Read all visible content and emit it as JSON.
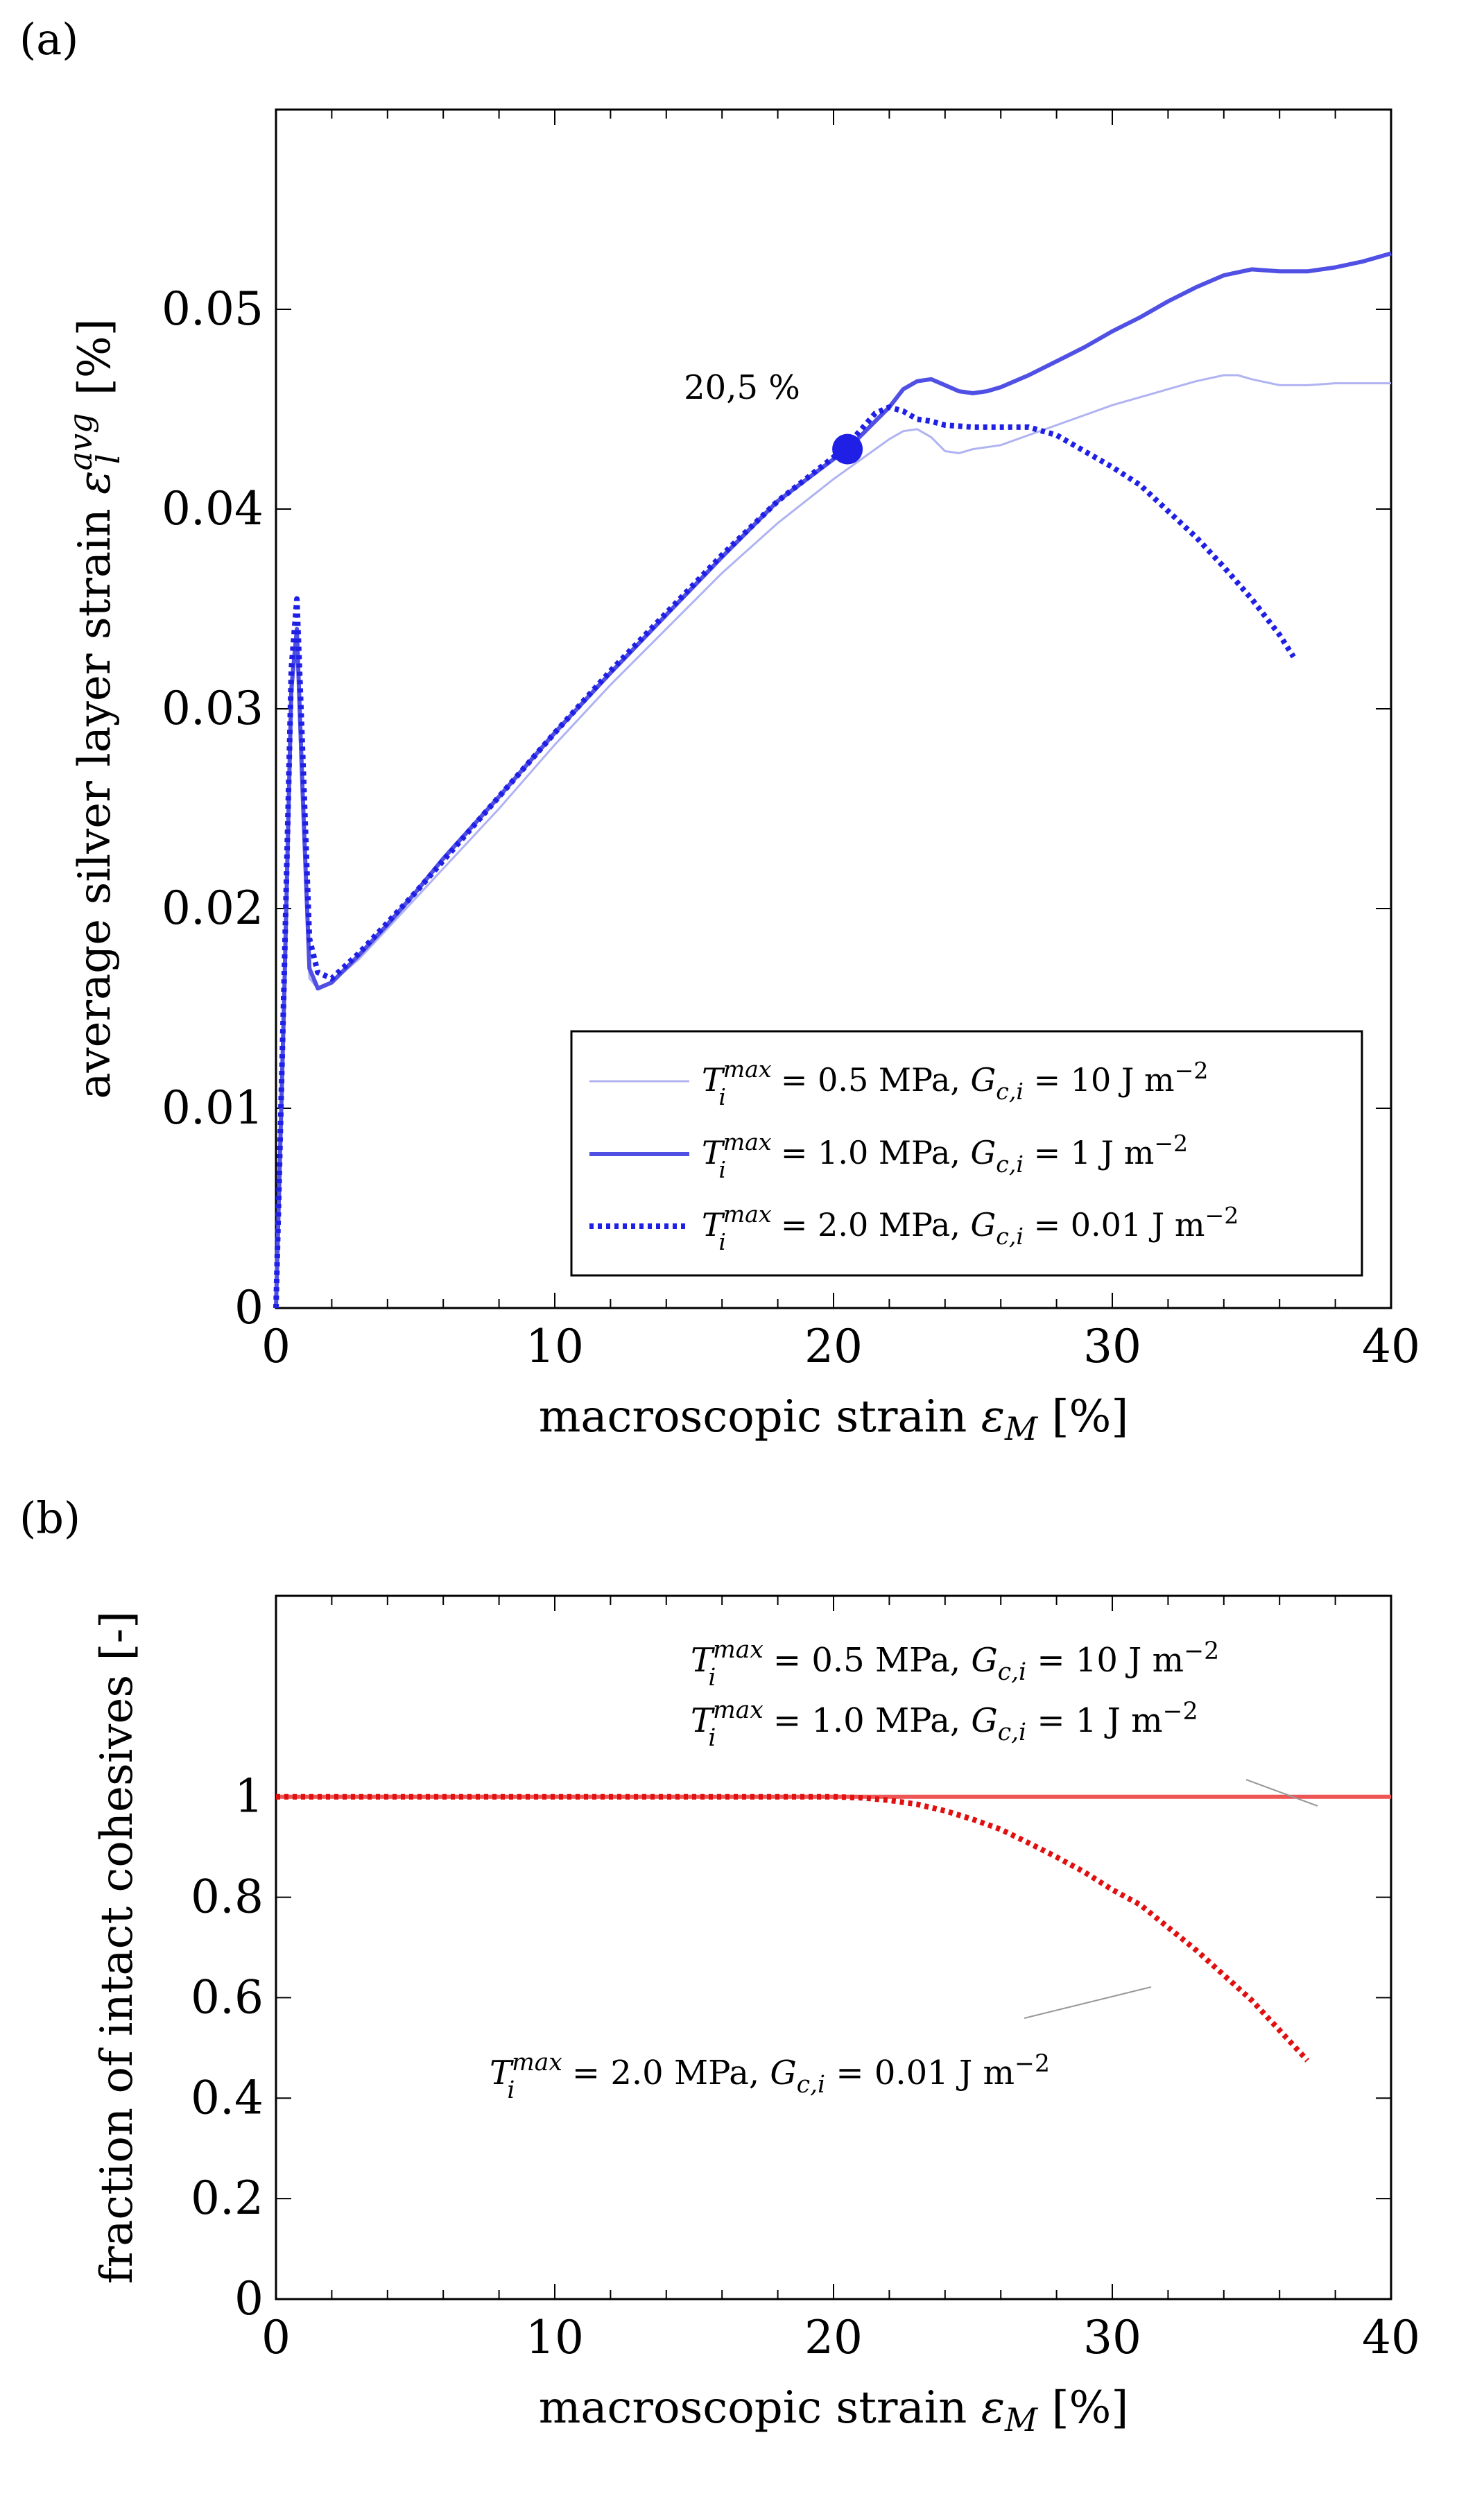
{
  "chart_data": [
    {
      "type": "line",
      "panel_label": "(a)",
      "xlabel": "macroscopic strain",
      "xsymbol": "ε",
      "xsub": "M",
      "xunit": "[%]",
      "ylabel": "average silver layer strain",
      "ysymbol": "ε",
      "ysub": "l",
      "ysup": "avg",
      "yunit": "[%]",
      "xlim": [
        0,
        40
      ],
      "ylim": [
        0,
        0.06
      ],
      "xticks": [
        0,
        10,
        20,
        30,
        40
      ],
      "xtick_labels": [
        "0",
        "10",
        "20",
        "30",
        "40"
      ],
      "yticks": [
        0,
        0.01,
        0.02,
        0.03,
        0.04,
        0.05
      ],
      "ytick_labels": [
        "0",
        "0.01",
        "0.02",
        "0.03",
        "0.04",
        "0.05"
      ],
      "grid": false,
      "legend_position": "bottom-right",
      "annotation": {
        "text": "20,5 %",
        "x": 20.5,
        "y": 0.043
      },
      "series": [
        {
          "name": "T_i^max = 0.5 MPa, G_c,i = 10 J m^-2",
          "legend": {
            "T": "T",
            "sub": "i",
            "sup": "max",
            "val1": " = 0.5 MPa, ",
            "G": "G",
            "gsub": "c,i",
            "val2": " = 10 J m",
            "exp": "−2"
          },
          "color": "#b0b3f2",
          "style": "thin",
          "x": [
            0,
            0.3,
            0.55,
            0.75,
            0.95,
            1.2,
            1.5,
            2,
            3,
            4,
            5,
            6,
            8,
            10,
            12,
            14,
            16,
            18,
            20,
            21,
            22,
            22.5,
            23,
            23.5,
            24,
            24.5,
            25,
            26,
            27,
            28,
            29,
            30,
            31,
            32,
            33,
            34,
            34.5,
            35,
            36,
            37,
            38,
            39,
            40
          ],
          "y": [
            0,
            0.015,
            0.03,
            0.034,
            0.025,
            0.0165,
            0.016,
            0.0163,
            0.0175,
            0.019,
            0.0205,
            0.022,
            0.025,
            0.0282,
            0.0312,
            0.034,
            0.0368,
            0.0393,
            0.0415,
            0.0425,
            0.0435,
            0.0439,
            0.044,
            0.0436,
            0.0429,
            0.0428,
            0.043,
            0.0432,
            0.0437,
            0.0442,
            0.0447,
            0.0452,
            0.0456,
            0.046,
            0.0464,
            0.0467,
            0.0467,
            0.0465,
            0.0462,
            0.0462,
            0.0463,
            0.0463,
            0.0463
          ]
        },
        {
          "name": "T_i^max = 1.0 MPa, G_c,i = 1 J m^-2",
          "legend": {
            "T": "T",
            "sub": "i",
            "sup": "max",
            "val1": " = 1.0 MPa, ",
            "G": "G",
            "gsub": "c,i",
            "val2": " = 1 J m",
            "exp": "−2"
          },
          "color": "#5050e4",
          "style": "solid",
          "x": [
            0,
            0.3,
            0.55,
            0.75,
            0.95,
            1.2,
            1.5,
            2,
            3,
            4,
            5,
            6,
            8,
            10,
            12,
            14,
            16,
            18,
            20,
            20.5,
            21,
            22,
            22.5,
            23,
            23.5,
            24,
            24.5,
            25,
            25.5,
            26,
            27,
            28,
            29,
            30,
            31,
            32,
            33,
            34,
            35,
            36,
            37,
            38,
            39,
            40
          ],
          "y": [
            0,
            0.016,
            0.031,
            0.034,
            0.026,
            0.017,
            0.016,
            0.0163,
            0.0177,
            0.0192,
            0.0208,
            0.0225,
            0.0256,
            0.0288,
            0.0318,
            0.0347,
            0.0376,
            0.0404,
            0.0425,
            0.043,
            0.0437,
            0.0451,
            0.046,
            0.0464,
            0.0465,
            0.0462,
            0.0459,
            0.0458,
            0.0459,
            0.0461,
            0.0467,
            0.0474,
            0.0481,
            0.0489,
            0.0496,
            0.0504,
            0.0511,
            0.0517,
            0.052,
            0.0519,
            0.0519,
            0.0521,
            0.0524,
            0.0528
          ]
        },
        {
          "name": "T_i^max = 2.0 MPa, G_c,i = 0.01 J m^-2",
          "legend": {
            "T": "T",
            "sub": "i",
            "sup": "max",
            "val1": " = 2.0 MPa, ",
            "G": "G",
            "gsub": "c,i",
            "val2": " = 0.01 J m",
            "exp": "−2"
          },
          "color": "#1f1fe6",
          "style": "dotted",
          "x": [
            0,
            0.3,
            0.55,
            0.75,
            0.95,
            1.2,
            1.5,
            2,
            3,
            4,
            5,
            6,
            8,
            10,
            12,
            14,
            16,
            18,
            20,
            20.5,
            21,
            21.5,
            22,
            22.5,
            23,
            23.5,
            24,
            25,
            26,
            27,
            28,
            29,
            30,
            31,
            32,
            33,
            34,
            35,
            36,
            36.5
          ],
          "y": [
            0,
            0.017,
            0.032,
            0.0355,
            0.028,
            0.0185,
            0.0168,
            0.0165,
            0.0178,
            0.0193,
            0.0208,
            0.0224,
            0.0256,
            0.0288,
            0.0319,
            0.0348,
            0.0377,
            0.0404,
            0.0426,
            0.0432,
            0.044,
            0.0448,
            0.0451,
            0.0449,
            0.0445,
            0.0444,
            0.0442,
            0.0441,
            0.0441,
            0.0441,
            0.0437,
            0.0429,
            0.0421,
            0.0412,
            0.0399,
            0.0386,
            0.0371,
            0.0355,
            0.0337,
            0.0326
          ]
        }
      ]
    },
    {
      "type": "line",
      "panel_label": "(b)",
      "xlabel": "macroscopic strain",
      "xsymbol": "ε",
      "xsub": "M",
      "xunit": "[%]",
      "ylabel": "fraction of intact cohesives [-]",
      "xlim": [
        0,
        40
      ],
      "ylim": [
        0,
        1.4
      ],
      "xticks": [
        0,
        10,
        20,
        30,
        40
      ],
      "xtick_labels": [
        "0",
        "10",
        "20",
        "30",
        "40"
      ],
      "yticks": [
        0,
        0.2,
        0.4,
        0.6,
        0.8,
        1
      ],
      "ytick_labels": [
        "0",
        "0.2",
        "0.4",
        "0.6",
        "0.8",
        "1"
      ],
      "grid": false,
      "annotations": [
        {
          "T": "T",
          "sub": "i",
          "sup": "max",
          "val1": " = 0.5 MPa, ",
          "G": "G",
          "gsub": "c,i",
          "val2": " = 10 J m",
          "exp": "−2"
        },
        {
          "T": "T",
          "sub": "i",
          "sup": "max",
          "val1": " = 1.0 MPa, ",
          "G": "G",
          "gsub": "c,i",
          "val2": " = 1 J m",
          "exp": "−2"
        },
        {
          "T": "T",
          "sub": "i",
          "sup": "max",
          "val1": " = 2.0 MPa, ",
          "G": "G",
          "gsub": "c,i",
          "val2": " = 0.01 J m",
          "exp": "−2"
        }
      ],
      "series": [
        {
          "name": "T_i^max = 0.5 MPa / 1.0 MPa",
          "color": "#ee5555",
          "style": "solid",
          "x": [
            0,
            40
          ],
          "y": [
            1,
            1
          ]
        },
        {
          "name": "T_i^max = 2.0 MPa, G_c,i = 0.01 J m^-2",
          "color": "#e01010",
          "style": "dotted",
          "x": [
            0,
            20,
            21,
            22,
            23,
            24,
            25,
            26,
            27,
            28,
            29,
            30,
            31,
            32,
            33,
            34,
            35,
            36,
            36.5,
            37
          ],
          "y": [
            1,
            1,
            0.998,
            0.993,
            0.985,
            0.972,
            0.955,
            0.935,
            0.908,
            0.88,
            0.85,
            0.815,
            0.785,
            0.74,
            0.695,
            0.645,
            0.595,
            0.535,
            0.505,
            0.475
          ]
        }
      ]
    }
  ]
}
